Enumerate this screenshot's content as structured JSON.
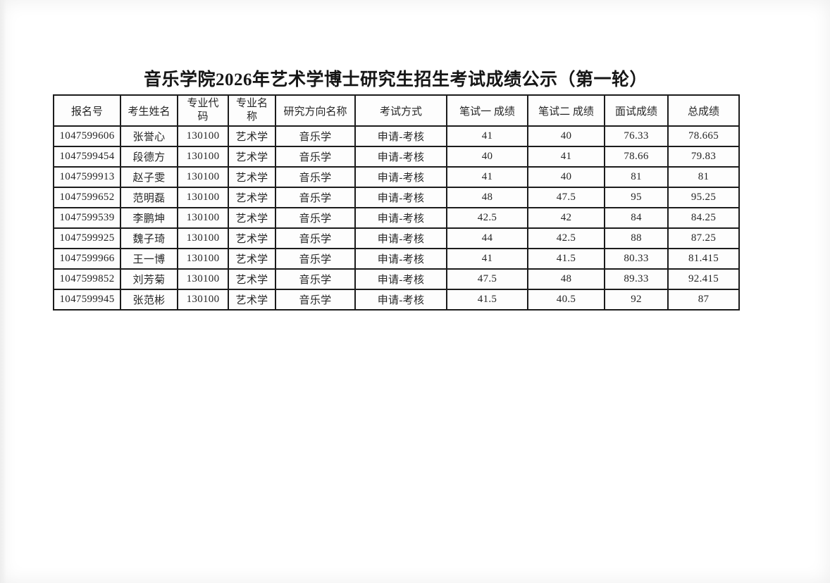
{
  "page": {
    "title": "音乐学院2026年艺术学博士研究生招生考试成绩公示（第一轮）"
  },
  "table": {
    "headers": [
      "报名号",
      "考生姓名",
      "专业代码",
      "专业名称",
      "研究方向名称",
      "考试方式",
      "笔试一 成绩",
      "笔试二 成绩",
      "面试成绩",
      "总成绩"
    ],
    "rows": [
      [
        "1047599606",
        "张誉心",
        "130100",
        "艺术学",
        "音乐学",
        "申请-考核",
        "41",
        "40",
        "76.33",
        "78.665"
      ],
      [
        "1047599454",
        "段德方",
        "130100",
        "艺术学",
        "音乐学",
        "申请-考核",
        "40",
        "41",
        "78.66",
        "79.83"
      ],
      [
        "1047599913",
        "赵子雯",
        "130100",
        "艺术学",
        "音乐学",
        "申请-考核",
        "41",
        "40",
        "81",
        "81"
      ],
      [
        "1047599652",
        "范明磊",
        "130100",
        "艺术学",
        "音乐学",
        "申请-考核",
        "48",
        "47.5",
        "95",
        "95.25"
      ],
      [
        "1047599539",
        "李鹏坤",
        "130100",
        "艺术学",
        "音乐学",
        "申请-考核",
        "42.5",
        "42",
        "84",
        "84.25"
      ],
      [
        "1047599925",
        "魏子琦",
        "130100",
        "艺术学",
        "音乐学",
        "申请-考核",
        "44",
        "42.5",
        "88",
        "87.25"
      ],
      [
        "1047599966",
        "王一博",
        "130100",
        "艺术学",
        "音乐学",
        "申请-考核",
        "41",
        "41.5",
        "80.33",
        "81.415"
      ],
      [
        "1047599852",
        "刘芳菊",
        "130100",
        "艺术学",
        "音乐学",
        "申请-考核",
        "47.5",
        "48",
        "89.33",
        "92.415"
      ],
      [
        "1047599945",
        "张范彬",
        "130100",
        "艺术学",
        "音乐学",
        "申请-考核",
        "41.5",
        "40.5",
        "92",
        "87"
      ]
    ]
  }
}
